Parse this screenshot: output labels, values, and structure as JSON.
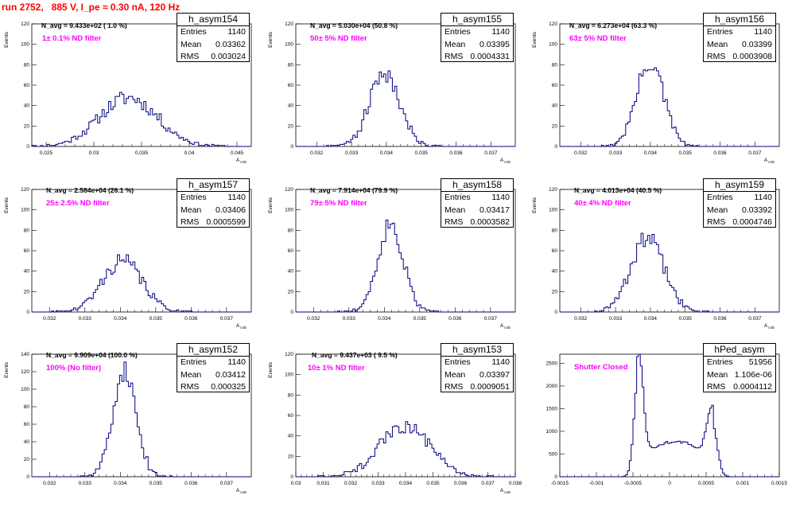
{
  "title": "run 2752,   885 V, I_pe ≈ 0.30 nA, 120 Hz",
  "colors": {
    "title": "#ff0000",
    "histogram": "#000080",
    "annotation": "#ff00ff",
    "axis": "#000000"
  },
  "chart_data": [
    {
      "type": "histogram",
      "name": "h_asym154",
      "stats": {
        "Entries": "1140",
        "Mean": "0.03362",
        "RMS": "0.003024"
      },
      "n_avg": "N_avg = 9.433e+02 ( 1.0 %)",
      "filter": "1± 0.1% ND filter",
      "xlabel": "A_{UID}",
      "ylabel": "Events",
      "xlim": [
        0.0235,
        0.0465
      ],
      "ylim": [
        0,
        120
      ],
      "xticks": [
        0.025,
        0.03,
        0.035,
        0.04,
        0.045
      ],
      "xtick_labels": [
        "0.025",
        "0.03",
        "0.035",
        "0.04",
        "0.045"
      ],
      "yticks": [
        0,
        20,
        40,
        60,
        80,
        100,
        120
      ],
      "dist": {
        "mean": 0.03362,
        "rms": 0.003024,
        "bins": 100,
        "amp": 48,
        "seed": 11
      }
    },
    {
      "type": "histogram",
      "name": "h_asym155",
      "stats": {
        "Entries": "1140",
        "Mean": "0.03395",
        "RMS": "0.0004331"
      },
      "n_avg": "N_avg = 5.030e+04 (50.8 %)",
      "filter": "50± 5% ND filter",
      "xlabel": "A_{UID}",
      "ylabel": "Events",
      "xlim": [
        0.0314,
        0.0377
      ],
      "ylim": [
        0,
        120
      ],
      "xticks": [
        0.032,
        0.033,
        0.034,
        0.035,
        0.036,
        0.037
      ],
      "xtick_labels": [
        "0.032",
        "0.033",
        "0.034",
        "0.035",
        "0.036",
        "0.037"
      ],
      "yticks": [
        0,
        20,
        40,
        60,
        80,
        100,
        120
      ],
      "dist": {
        "mean": 0.03395,
        "rms": 0.0004331,
        "bins": 100,
        "amp": 72,
        "seed": 21
      }
    },
    {
      "type": "histogram",
      "name": "h_asym156",
      "stats": {
        "Entries": "1140",
        "Mean": "0.03399",
        "RMS": "0.0003908"
      },
      "n_avg": "N_avg = 6.273e+04 (63.3 %)",
      "filter": "63± 5% ND filter",
      "xlabel": "A_{UID}",
      "ylabel": "Events",
      "xlim": [
        0.0314,
        0.0377
      ],
      "ylim": [
        0,
        120
      ],
      "xticks": [
        0.032,
        0.033,
        0.034,
        0.035,
        0.036,
        0.037
      ],
      "xtick_labels": [
        "0.032",
        "0.033",
        "0.034",
        "0.035",
        "0.036",
        "0.037"
      ],
      "yticks": [
        0,
        20,
        40,
        60,
        80,
        100,
        120
      ],
      "dist": {
        "mean": 0.03399,
        "rms": 0.0003908,
        "bins": 100,
        "amp": 82,
        "seed": 31
      }
    },
    {
      "type": "histogram",
      "name": "h_asym157",
      "stats": {
        "Entries": "1140",
        "Mean": "0.03406",
        "RMS": "0.0005599"
      },
      "n_avg": "N_avg = 2.584e+04 (26.1 %)",
      "filter": "25± 2.5% ND filter",
      "xlabel": "A_{UID}",
      "ylabel": "Events",
      "xlim": [
        0.0315,
        0.0377
      ],
      "ylim": [
        0,
        120
      ],
      "xticks": [
        0.032,
        0.033,
        0.034,
        0.035,
        0.036,
        0.037
      ],
      "xtick_labels": [
        "0.032",
        "0.033",
        "0.034",
        "0.035",
        "0.036",
        "0.037"
      ],
      "yticks": [
        0,
        20,
        40,
        60,
        80,
        100,
        120
      ],
      "dist": {
        "mean": 0.03406,
        "rms": 0.0005599,
        "bins": 100,
        "amp": 50,
        "seed": 41
      }
    },
    {
      "type": "histogram",
      "name": "h_asym158",
      "stats": {
        "Entries": "1140",
        "Mean": "0.03417",
        "RMS": "0.0003582"
      },
      "n_avg": "N_avg = 7.914e+04 (79.9 %)",
      "filter": "79± 5% ND filter",
      "xlabel": "A_{UID}",
      "ylabel": "Events",
      "xlim": [
        0.0315,
        0.0377
      ],
      "ylim": [
        0,
        120
      ],
      "xticks": [
        0.032,
        0.033,
        0.034,
        0.035,
        0.036,
        0.037
      ],
      "xtick_labels": [
        "0.032",
        "0.033",
        "0.034",
        "0.035",
        "0.036",
        "0.037"
      ],
      "yticks": [
        0,
        20,
        40,
        60,
        80,
        100,
        120
      ],
      "dist": {
        "mean": 0.03417,
        "rms": 0.0003582,
        "bins": 100,
        "amp": 86,
        "seed": 51
      }
    },
    {
      "type": "histogram",
      "name": "h_asym159",
      "stats": {
        "Entries": "1140",
        "Mean": "0.03392",
        "RMS": "0.0004746"
      },
      "n_avg": "N_avg = 4.013e+04 (40.5 %)",
      "filter": "40± 4% ND filter",
      "xlabel": "A_{UID}",
      "ylabel": "Events",
      "xlim": [
        0.0314,
        0.0377
      ],
      "ylim": [
        0,
        120
      ],
      "xticks": [
        0.032,
        0.033,
        0.034,
        0.035,
        0.036,
        0.037
      ],
      "xtick_labels": [
        "0.032",
        "0.033",
        "0.034",
        "0.035",
        "0.036",
        "0.037"
      ],
      "yticks": [
        0,
        20,
        40,
        60,
        80,
        100,
        120
      ],
      "dist": {
        "mean": 0.03392,
        "rms": 0.0004746,
        "bins": 100,
        "amp": 72,
        "seed": 61
      }
    },
    {
      "type": "histogram",
      "name": "h_asym152",
      "stats": {
        "Entries": "1140",
        "Mean": "0.03412",
        "RMS": "0.000325"
      },
      "n_avg": "N_avg = 9.909e+04 (100.0 %)",
      "filter": "100% (No filter)",
      "xlabel": "A_{UID}",
      "ylabel": "Events",
      "xlim": [
        0.0315,
        0.0377
      ],
      "ylim": [
        0,
        140
      ],
      "xticks": [
        0.032,
        0.033,
        0.034,
        0.035,
        0.036,
        0.037
      ],
      "xtick_labels": [
        "0.032",
        "0.033",
        "0.034",
        "0.035",
        "0.036",
        "0.037"
      ],
      "yticks": [
        0,
        20,
        40,
        60,
        80,
        100,
        120,
        140
      ],
      "dist": {
        "mean": 0.03412,
        "rms": 0.000325,
        "bins": 100,
        "amp": 122,
        "seed": 71
      }
    },
    {
      "type": "histogram",
      "name": "h_asym153",
      "stats": {
        "Entries": "1140",
        "Mean": "0.03397",
        "RMS": "0.0009051"
      },
      "n_avg": "N_avg = 9.437e+03 ( 9.5 %)",
      "filter": "10± 1% ND filter",
      "xlabel": "A_{UID}",
      "ylabel": "Events",
      "xlim": [
        0.03,
        0.038
      ],
      "ylim": [
        0,
        120
      ],
      "xticks": [
        0.03,
        0.031,
        0.032,
        0.033,
        0.034,
        0.035,
        0.036,
        0.037,
        0.038
      ],
      "xtick_labels": [
        "0.03",
        "0.031",
        "0.032",
        "0.033",
        "0.034",
        "0.035",
        "0.036",
        "0.037",
        "0.038"
      ],
      "yticks": [
        0,
        20,
        40,
        60,
        80,
        100,
        120
      ],
      "dist": {
        "mean": 0.03397,
        "rms": 0.0009051,
        "bins": 100,
        "amp": 50,
        "seed": 81
      }
    },
    {
      "type": "histogram",
      "name": "hPed_asym",
      "stats": {
        "Entries": "51956",
        "Mean": "1.106e-06",
        "RMS": "0.0004112"
      },
      "n_avg": "",
      "filter": "Shutter Closed",
      "xlabel": "",
      "ylabel": "",
      "xlim": [
        -0.0015,
        0.0015
      ],
      "ylim": [
        0,
        2700
      ],
      "xticks": [
        -0.0015,
        -0.001,
        -0.0005,
        0,
        0.0005,
        0.001,
        0.0015
      ],
      "xtick_labels": [
        "-0.0015",
        "-0.001",
        "-0.0005",
        "0",
        "0.0005",
        "0.001",
        "0.0015"
      ],
      "yticks": [
        0,
        500,
        1000,
        1500,
        2000,
        2500
      ],
      "dist": {
        "bimodal": true,
        "bins": 120,
        "seed": 91
      }
    }
  ]
}
